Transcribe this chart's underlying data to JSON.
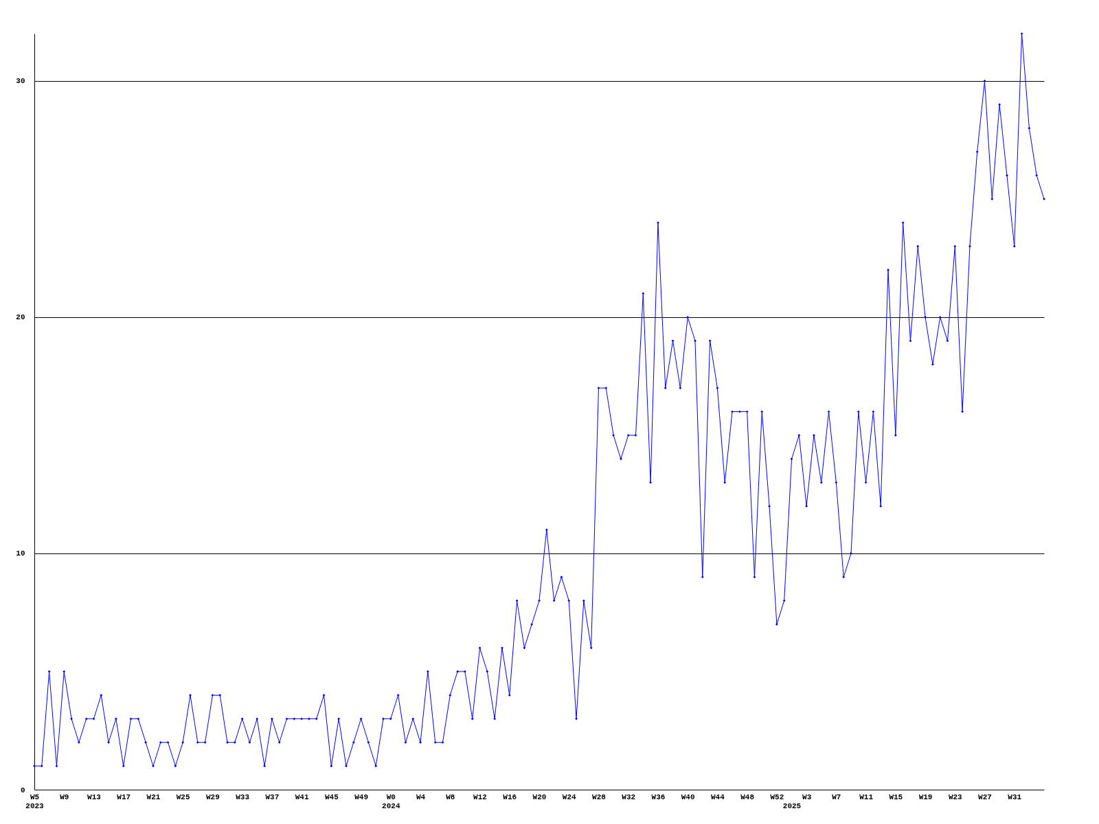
{
  "chart_data": {
    "type": "line",
    "color": "#0000ff",
    "marker": "diamond",
    "line_style": "solid",
    "grid": "y",
    "ylim": [
      0,
      32
    ],
    "yticks": [
      0,
      10,
      20,
      30
    ],
    "categories": [
      "W5\n2023",
      null,
      null,
      null,
      "W9",
      null,
      null,
      null,
      "W13",
      null,
      null,
      null,
      "W17",
      null,
      null,
      null,
      "W21",
      null,
      null,
      null,
      "W25",
      null,
      null,
      null,
      "W29",
      null,
      null,
      null,
      "W33",
      null,
      null,
      null,
      "W37",
      null,
      null,
      null,
      "W41",
      null,
      null,
      null,
      "W45",
      null,
      null,
      null,
      "W49",
      null,
      null,
      null,
      "W0\n2024",
      null,
      null,
      null,
      "W4",
      null,
      null,
      null,
      "W8",
      null,
      null,
      null,
      "W12",
      null,
      null,
      null,
      "W16",
      null,
      null,
      null,
      "W20",
      null,
      null,
      null,
      "W24",
      null,
      null,
      null,
      "W28",
      null,
      null,
      null,
      "W32",
      null,
      null,
      null,
      "W36",
      null,
      null,
      null,
      "W40",
      null,
      null,
      null,
      "W44",
      null,
      null,
      null,
      "W48",
      null,
      null,
      null,
      "W52",
      null,
      "\n2025",
      null,
      "W3",
      null,
      null,
      null,
      "W7",
      null,
      null,
      null,
      "W11",
      null,
      null,
      null,
      "W15",
      null,
      null,
      null,
      "W19",
      null,
      null,
      null,
      "W23",
      null,
      null,
      null,
      "W27",
      null,
      null,
      null,
      "W31",
      null,
      null,
      null,
      null
    ],
    "values": [
      1,
      1,
      5,
      1,
      5,
      3,
      2,
      3,
      3,
      4,
      2,
      3,
      1,
      3,
      3,
      2,
      1,
      2,
      2,
      1,
      2,
      4,
      2,
      2,
      4,
      4,
      2,
      2,
      3,
      2,
      3,
      1,
      3,
      2,
      3,
      3,
      3,
      3,
      3,
      4,
      1,
      3,
      1,
      2,
      3,
      2,
      1,
      3,
      3,
      4,
      2,
      3,
      2,
      5,
      2,
      2,
      4,
      5,
      5,
      3,
      6,
      5,
      3,
      6,
      4,
      8,
      6,
      7,
      8,
      11,
      8,
      9,
      8,
      3,
      8,
      6,
      17,
      17,
      15,
      14,
      15,
      15,
      21,
      13,
      24,
      17,
      19,
      17,
      20,
      19,
      9,
      19,
      17,
      13,
      16,
      16,
      16,
      9,
      16,
      12,
      7,
      8,
      14,
      15,
      12,
      15,
      13,
      16,
      13,
      9,
      10,
      16,
      13,
      16,
      12,
      22,
      15,
      24,
      19,
      23,
      20,
      18,
      20,
      19,
      23,
      16,
      23,
      27,
      30,
      25,
      29,
      26,
      23,
      32,
      28,
      26,
      25
    ]
  }
}
